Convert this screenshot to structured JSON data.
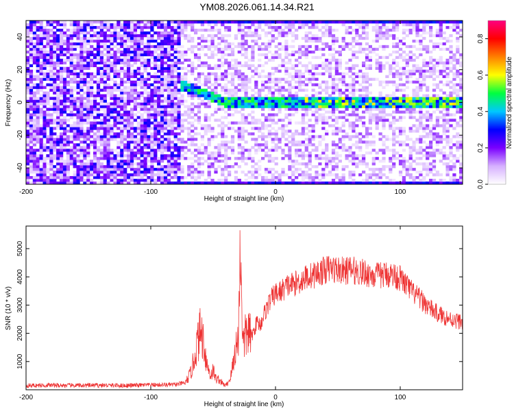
{
  "title": "YM08.2026.061.14.34.R21",
  "chart_data": [
    {
      "type": "heatmap",
      "xlabel": "Height of straight line (km)",
      "ylabel": "Frequency (Hz)",
      "xlim": [
        -200,
        150
      ],
      "ylim": [
        -50,
        50
      ],
      "xticks": [
        -200,
        -100,
        0,
        100
      ],
      "yticks": [
        -40,
        -20,
        0,
        20,
        40
      ],
      "colorbar": {
        "label": "Normalized spectral amplitude",
        "range": [
          0.0,
          0.9
        ],
        "ticks": [
          0.0,
          0.2,
          0.4,
          0.6,
          0.8
        ],
        "colors": [
          "#ffffff",
          "#d6b0ff",
          "#7a00ff",
          "#0000ff",
          "#00c8ff",
          "#00ff40",
          "#ffff00",
          "#ff8000",
          "#ff0000",
          "#ff0080"
        ]
      },
      "features": {
        "noise_region_x": [
          -200,
          -75
        ],
        "signal_line_freq_hz": 0,
        "signal_onset_x": -80,
        "edge_bands_freq_hz": [
          -50,
          50
        ]
      }
    },
    {
      "type": "line",
      "xlabel": "Height of straight line (km)",
      "ylabel": "SNR (10 * v/v)",
      "xlim": [
        -200,
        150
      ],
      "ylim": [
        0,
        5800
      ],
      "xticks": [
        -200,
        -100,
        0,
        100
      ],
      "yticks": [
        1000,
        2000,
        3000,
        4000,
        5000
      ],
      "series": [
        {
          "color": "#ee3333",
          "x": [
            -200,
            -180,
            -160,
            -140,
            -120,
            -100,
            -80,
            -72,
            -68,
            -65,
            -63,
            -60,
            -58,
            -55,
            -52,
            -50,
            -48,
            -45,
            -42,
            -40,
            -38,
            -36,
            -34,
            -32,
            -30,
            -28,
            -26,
            -24,
            -22,
            -20,
            -18,
            -15,
            -12,
            -10,
            -8,
            -5,
            -2,
            0,
            3,
            6,
            10,
            15,
            20,
            25,
            30,
            35,
            40,
            45,
            50,
            55,
            60,
            65,
            70,
            75,
            80,
            85,
            90,
            95,
            100,
            105,
            110,
            115,
            120,
            125,
            130,
            135,
            140,
            145,
            150
          ],
          "y": [
            150,
            160,
            150,
            160,
            150,
            170,
            180,
            250,
            600,
            1100,
            1600,
            2100,
            1800,
            900,
            500,
            700,
            400,
            350,
            200,
            150,
            250,
            450,
            900,
            1500,
            1700,
            5100,
            1600,
            1900,
            2100,
            1900,
            2000,
            2400,
            2300,
            2600,
            2800,
            3100,
            3300,
            3400,
            3450,
            3550,
            3700,
            3750,
            3850,
            4000,
            4050,
            4150,
            4250,
            4300,
            4250,
            4200,
            4250,
            4200,
            4150,
            4100,
            4050,
            4050,
            4100,
            4050,
            3950,
            3700,
            3450,
            3250,
            3050,
            2850,
            2700,
            2600,
            2500,
            2450,
            2400
          ]
        }
      ]
    }
  ]
}
